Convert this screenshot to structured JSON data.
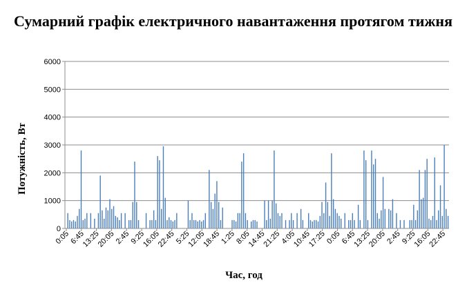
{
  "chart_data": {
    "type": "bar",
    "title": "Сумарний графік електричного навантаження протягом тижня",
    "xlabel": "Час, год",
    "ylabel": "Потужність, Вт",
    "ylim": [
      0,
      6000
    ],
    "yticks": [
      0,
      1000,
      2000,
      3000,
      4000,
      5000,
      6000
    ],
    "grid": true,
    "legend": "none",
    "bar_color": "#4a7ebb",
    "xtick_labels": [
      "0:05",
      "6:45",
      "13:25",
      "20:05",
      "2:45",
      "9:25",
      "16:05",
      "22:45",
      "5:25",
      "12:05",
      "18:45",
      "1:25",
      "8:05",
      "14:45",
      "21:25",
      "4:05",
      "10:45",
      "17:25",
      "0:05",
      "6:45",
      "13:25",
      "20:05",
      "2:45",
      "9:25",
      "16:05",
      "22:45"
    ],
    "values": [
      0,
      550,
      300,
      250,
      300,
      250,
      450,
      700,
      2800,
      300,
      350,
      550,
      0,
      550,
      0,
      350,
      0,
      550,
      1900,
      650,
      350,
      750,
      650,
      1050,
      700,
      800,
      450,
      400,
      300,
      550,
      0,
      550,
      0,
      300,
      300,
      950,
      2400,
      950,
      300,
      0,
      0,
      0,
      550,
      0,
      300,
      300,
      650,
      300,
      2600,
      2450,
      700,
      2950,
      1100,
      300,
      400,
      300,
      250,
      300,
      550,
      0,
      0,
      0,
      0,
      0,
      1000,
      300,
      550,
      300,
      300,
      250,
      300,
      250,
      300,
      550,
      0,
      2100,
      950,
      700,
      1250,
      1700,
      950,
      300,
      750,
      0,
      0,
      0,
      0,
      300,
      300,
      250,
      550,
      550,
      2400,
      2700,
      550,
      300,
      0,
      250,
      300,
      300,
      250,
      0,
      0,
      0,
      1000,
      300,
      1000,
      350,
      1000,
      2800,
      900,
      550,
      450,
      550,
      0,
      300,
      0,
      300,
      550,
      300,
      0,
      550,
      0,
      700,
      300,
      0,
      0,
      550,
      300,
      250,
      300,
      300,
      250,
      450,
      950,
      550,
      1650,
      950,
      450,
      2700,
      1050,
      700,
      550,
      450,
      350,
      0,
      550,
      0,
      300,
      300,
      550,
      300,
      0,
      850,
      300,
      0,
      2800,
      2450,
      300,
      0,
      2800,
      2300,
      2500,
      550,
      350,
      650,
      1850,
      700,
      0,
      700,
      650,
      1050,
      0,
      550,
      0,
      300,
      0,
      300,
      0,
      0,
      300,
      300,
      850,
      300,
      650,
      2100,
      1050,
      1100,
      2100,
      2500,
      350,
      300,
      450,
      2550,
      300,
      650,
      1550,
      450,
      3000,
      700,
      450
    ]
  }
}
